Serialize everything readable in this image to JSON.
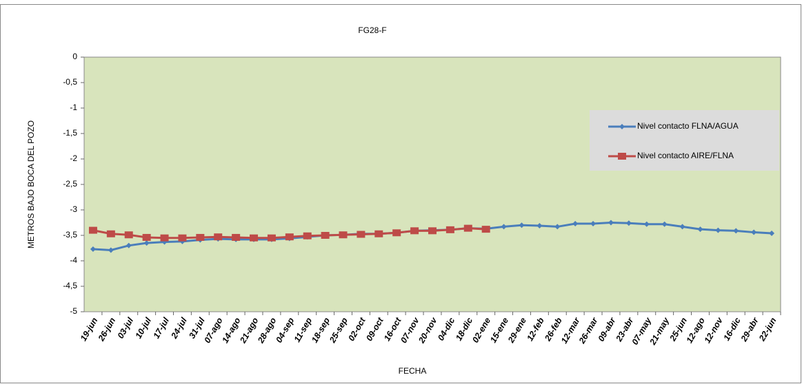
{
  "chart_data": {
    "type": "line",
    "title": "FG28-F",
    "x_label": "FECHA",
    "y_label": "METROS BAJO BOCA DEL POZO",
    "categories": [
      "19-jun",
      "26-jun",
      "03-jul",
      "10-jul",
      "17-jul",
      "24-jul",
      "31-jul",
      "07-ago",
      "14-ago",
      "21-ago",
      "28-ago",
      "04-sep",
      "11-sep",
      "18-sep",
      "25-sep",
      "02-oct",
      "09-oct",
      "16-oct",
      "07-nov",
      "20-nov",
      "04-dic",
      "18-dic",
      "02-ene",
      "15-ene",
      "29-ene",
      "12-feb",
      "26-feb",
      "12-mar",
      "26-mar",
      "09-abr",
      "23-abr",
      "07-may",
      "21-may",
      "25-jun",
      "12-ago",
      "12-nov",
      "16-dic",
      "29-abr",
      "22-jun"
    ],
    "series": [
      {
        "name": "Nivel contacto FLNA/AGUA",
        "color": "#4a7ebb",
        "marker": "diamond",
        "values": [
          -3.77,
          -3.79,
          -3.7,
          -3.65,
          -3.63,
          -3.62,
          -3.59,
          -3.57,
          -3.58,
          -3.58,
          -3.58,
          -3.56,
          -3.53,
          -3.5,
          -3.49,
          -3.47,
          -3.47,
          -3.45,
          -3.41,
          -3.4,
          -3.39,
          -3.36,
          -3.37,
          -3.33,
          -3.3,
          -3.31,
          -3.33,
          -3.27,
          -3.27,
          -3.25,
          -3.26,
          -3.28,
          -3.28,
          -3.33,
          -3.38,
          -3.4,
          -3.41,
          -3.44,
          -3.46
        ]
      },
      {
        "name": "Nivel contacto AIRE/FLNA",
        "color": "#be4b48",
        "marker": "square",
        "values": [
          -3.4,
          -3.47,
          -3.49,
          -3.54,
          -3.55,
          -3.55,
          -3.54,
          -3.53,
          -3.54,
          -3.55,
          -3.55,
          -3.53,
          -3.51,
          -3.5,
          -3.49,
          -3.48,
          -3.47,
          -3.45,
          -3.41,
          -3.41,
          -3.39,
          -3.36,
          -3.38,
          null,
          null,
          null,
          null,
          null,
          null,
          null,
          null,
          null,
          null,
          null,
          null,
          null,
          null,
          null,
          null
        ]
      }
    ],
    "ylim": [
      -5,
      0
    ],
    "yticks": [
      0,
      {
        "value": -0.5,
        "label": "-0,5"
      },
      -1,
      {
        "value": -1.5,
        "label": "-1,5"
      },
      -2,
      {
        "value": -2.5,
        "label": "-2,5"
      },
      -3,
      {
        "value": -3.5,
        "label": "-3,5"
      },
      -4,
      {
        "value": -4.5,
        "label": "-4,5"
      },
      -5
    ],
    "plot_background": "#d8e4bc",
    "legend": "right"
  }
}
